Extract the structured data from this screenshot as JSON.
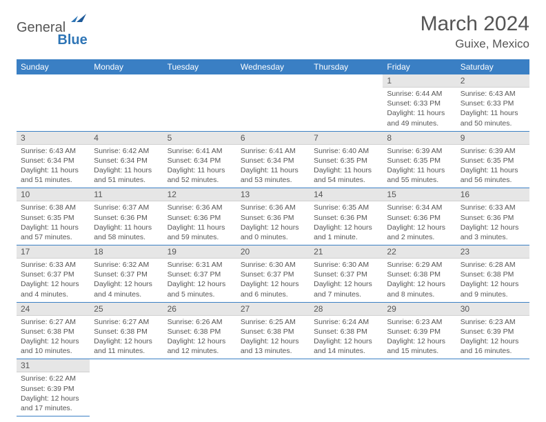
{
  "logo": {
    "text1": "General",
    "text2": "Blue"
  },
  "title": "March 2024",
  "location": "Guixe, Mexico",
  "colors": {
    "header_bg": "#3a7fc4",
    "daynum_bg": "#e6e6e6",
    "text": "#555555",
    "border": "#3a7fc4"
  },
  "day_headers": [
    "Sunday",
    "Monday",
    "Tuesday",
    "Wednesday",
    "Thursday",
    "Friday",
    "Saturday"
  ],
  "weeks": [
    [
      null,
      null,
      null,
      null,
      null,
      {
        "n": "1",
        "sr": "Sunrise: 6:44 AM",
        "ss": "Sunset: 6:33 PM",
        "dl": "Daylight: 11 hours and 49 minutes."
      },
      {
        "n": "2",
        "sr": "Sunrise: 6:43 AM",
        "ss": "Sunset: 6:33 PM",
        "dl": "Daylight: 11 hours and 50 minutes."
      }
    ],
    [
      {
        "n": "3",
        "sr": "Sunrise: 6:43 AM",
        "ss": "Sunset: 6:34 PM",
        "dl": "Daylight: 11 hours and 51 minutes."
      },
      {
        "n": "4",
        "sr": "Sunrise: 6:42 AM",
        "ss": "Sunset: 6:34 PM",
        "dl": "Daylight: 11 hours and 51 minutes."
      },
      {
        "n": "5",
        "sr": "Sunrise: 6:41 AM",
        "ss": "Sunset: 6:34 PM",
        "dl": "Daylight: 11 hours and 52 minutes."
      },
      {
        "n": "6",
        "sr": "Sunrise: 6:41 AM",
        "ss": "Sunset: 6:34 PM",
        "dl": "Daylight: 11 hours and 53 minutes."
      },
      {
        "n": "7",
        "sr": "Sunrise: 6:40 AM",
        "ss": "Sunset: 6:35 PM",
        "dl": "Daylight: 11 hours and 54 minutes."
      },
      {
        "n": "8",
        "sr": "Sunrise: 6:39 AM",
        "ss": "Sunset: 6:35 PM",
        "dl": "Daylight: 11 hours and 55 minutes."
      },
      {
        "n": "9",
        "sr": "Sunrise: 6:39 AM",
        "ss": "Sunset: 6:35 PM",
        "dl": "Daylight: 11 hours and 56 minutes."
      }
    ],
    [
      {
        "n": "10",
        "sr": "Sunrise: 6:38 AM",
        "ss": "Sunset: 6:35 PM",
        "dl": "Daylight: 11 hours and 57 minutes."
      },
      {
        "n": "11",
        "sr": "Sunrise: 6:37 AM",
        "ss": "Sunset: 6:36 PM",
        "dl": "Daylight: 11 hours and 58 minutes."
      },
      {
        "n": "12",
        "sr": "Sunrise: 6:36 AM",
        "ss": "Sunset: 6:36 PM",
        "dl": "Daylight: 11 hours and 59 minutes."
      },
      {
        "n": "13",
        "sr": "Sunrise: 6:36 AM",
        "ss": "Sunset: 6:36 PM",
        "dl": "Daylight: 12 hours and 0 minutes."
      },
      {
        "n": "14",
        "sr": "Sunrise: 6:35 AM",
        "ss": "Sunset: 6:36 PM",
        "dl": "Daylight: 12 hours and 1 minute."
      },
      {
        "n": "15",
        "sr": "Sunrise: 6:34 AM",
        "ss": "Sunset: 6:36 PM",
        "dl": "Daylight: 12 hours and 2 minutes."
      },
      {
        "n": "16",
        "sr": "Sunrise: 6:33 AM",
        "ss": "Sunset: 6:36 PM",
        "dl": "Daylight: 12 hours and 3 minutes."
      }
    ],
    [
      {
        "n": "17",
        "sr": "Sunrise: 6:33 AM",
        "ss": "Sunset: 6:37 PM",
        "dl": "Daylight: 12 hours and 4 minutes."
      },
      {
        "n": "18",
        "sr": "Sunrise: 6:32 AM",
        "ss": "Sunset: 6:37 PM",
        "dl": "Daylight: 12 hours and 4 minutes."
      },
      {
        "n": "19",
        "sr": "Sunrise: 6:31 AM",
        "ss": "Sunset: 6:37 PM",
        "dl": "Daylight: 12 hours and 5 minutes."
      },
      {
        "n": "20",
        "sr": "Sunrise: 6:30 AM",
        "ss": "Sunset: 6:37 PM",
        "dl": "Daylight: 12 hours and 6 minutes."
      },
      {
        "n": "21",
        "sr": "Sunrise: 6:30 AM",
        "ss": "Sunset: 6:37 PM",
        "dl": "Daylight: 12 hours and 7 minutes."
      },
      {
        "n": "22",
        "sr": "Sunrise: 6:29 AM",
        "ss": "Sunset: 6:38 PM",
        "dl": "Daylight: 12 hours and 8 minutes."
      },
      {
        "n": "23",
        "sr": "Sunrise: 6:28 AM",
        "ss": "Sunset: 6:38 PM",
        "dl": "Daylight: 12 hours and 9 minutes."
      }
    ],
    [
      {
        "n": "24",
        "sr": "Sunrise: 6:27 AM",
        "ss": "Sunset: 6:38 PM",
        "dl": "Daylight: 12 hours and 10 minutes."
      },
      {
        "n": "25",
        "sr": "Sunrise: 6:27 AM",
        "ss": "Sunset: 6:38 PM",
        "dl": "Daylight: 12 hours and 11 minutes."
      },
      {
        "n": "26",
        "sr": "Sunrise: 6:26 AM",
        "ss": "Sunset: 6:38 PM",
        "dl": "Daylight: 12 hours and 12 minutes."
      },
      {
        "n": "27",
        "sr": "Sunrise: 6:25 AM",
        "ss": "Sunset: 6:38 PM",
        "dl": "Daylight: 12 hours and 13 minutes."
      },
      {
        "n": "28",
        "sr": "Sunrise: 6:24 AM",
        "ss": "Sunset: 6:38 PM",
        "dl": "Daylight: 12 hours and 14 minutes."
      },
      {
        "n": "29",
        "sr": "Sunrise: 6:23 AM",
        "ss": "Sunset: 6:39 PM",
        "dl": "Daylight: 12 hours and 15 minutes."
      },
      {
        "n": "30",
        "sr": "Sunrise: 6:23 AM",
        "ss": "Sunset: 6:39 PM",
        "dl": "Daylight: 12 hours and 16 minutes."
      }
    ],
    [
      {
        "n": "31",
        "sr": "Sunrise: 6:22 AM",
        "ss": "Sunset: 6:39 PM",
        "dl": "Daylight: 12 hours and 17 minutes."
      },
      null,
      null,
      null,
      null,
      null,
      null
    ]
  ]
}
